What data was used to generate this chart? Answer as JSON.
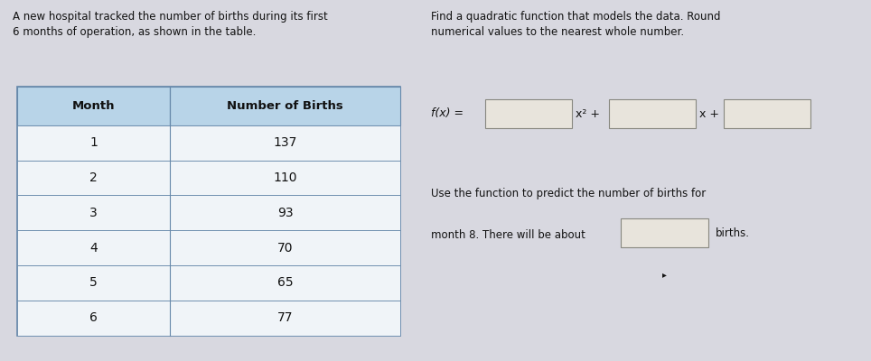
{
  "title_left_line1": "A new hospital tracked the number of births during its first",
  "title_left_line2": "6 months of operation, as shown in the table.",
  "title_right_line1": "Find a quadratic function that models the data. Round",
  "title_right_line2": "numerical values to the nearest whole number.",
  "table_headers": [
    "Month",
    "Number of Births"
  ],
  "table_data": [
    [
      1,
      137
    ],
    [
      2,
      110
    ],
    [
      3,
      93
    ],
    [
      4,
      70
    ],
    [
      5,
      65
    ],
    [
      6,
      77
    ]
  ],
  "formula_label": "f(x) =",
  "formula_x2": "x² +",
  "formula_x": "x +",
  "predict_line1": "Use the function to predict the number of births for",
  "predict_line2": "month 8. There will be about",
  "predict_suffix": "births.",
  "bg_color": "#d8d8e0",
  "table_outer_bg": "#ffffff",
  "table_header_bg": "#b8d4e8",
  "table_header_text": "#111111",
  "table_row_bg_light": "#f0f4f8",
  "table_row_bg_mid": "#e8eef4",
  "table_border_color": "#6688aa",
  "text_color": "#111111",
  "input_box_color": "#e8e4dc",
  "input_box_border": "#888880",
  "font_size_body": 8.5,
  "font_size_header": 9.5,
  "font_size_table_data": 10
}
